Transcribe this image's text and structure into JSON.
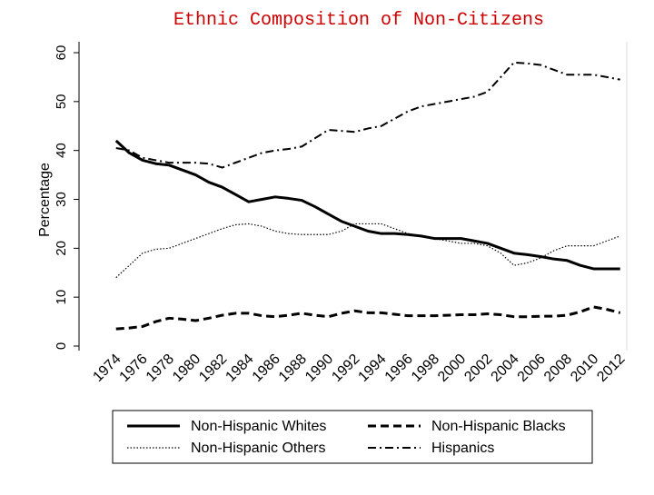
{
  "chart_data": {
    "type": "line",
    "title": "Ethnic Composition of Non-Citizens",
    "y_label": "Percentage",
    "x": [
      1974,
      1975,
      1976,
      1977,
      1978,
      1979,
      1980,
      1981,
      1982,
      1983,
      1984,
      1985,
      1986,
      1987,
      1988,
      1989,
      1990,
      1991,
      1992,
      1993,
      1994,
      1995,
      1996,
      1997,
      1998,
      1999,
      2000,
      2001,
      2002,
      2003,
      2004,
      2005,
      2006,
      2007,
      2008,
      2009,
      2010,
      2011,
      2012
    ],
    "series": [
      {
        "name": "Non-Hispanic Whites",
        "color": "#000000",
        "dash": "solid",
        "values": [
          42,
          39.5,
          38,
          37.3,
          37,
          36,
          35,
          33.5,
          32.5,
          31,
          29.5,
          30,
          30.5,
          30.2,
          29.8,
          28.5,
          27,
          25.5,
          24.5,
          23.5,
          23,
          23,
          22.8,
          22.5,
          22,
          22,
          22,
          21.5,
          21,
          20,
          19,
          18.7,
          18.3,
          17.8,
          17.5,
          16.5,
          15.8,
          15.8,
          15.8
        ]
      },
      {
        "name": "Non-Hispanic Blacks",
        "color": "#000000",
        "dash": "dash",
        "values": [
          3.5,
          3.7,
          4,
          5,
          5.7,
          5.5,
          5.2,
          5.7,
          6.3,
          6.7,
          6.7,
          6.2,
          6,
          6.3,
          6.7,
          6.3,
          6,
          6.7,
          7.2,
          6.8,
          6.8,
          6.5,
          6.2,
          6.2,
          6.2,
          6.3,
          6.4,
          6.4,
          6.6,
          6.4,
          6,
          6,
          6.1,
          6.1,
          6.3,
          7,
          8,
          7.5,
          6.8
        ]
      },
      {
        "name": "Non-Hispanic Others",
        "color": "#000000",
        "dash": "dot",
        "values": [
          14,
          16.5,
          19,
          19.8,
          20,
          21,
          22,
          23,
          24,
          24.8,
          25,
          24.5,
          23.5,
          23,
          22.8,
          22.8,
          22.8,
          23.5,
          25,
          25,
          25,
          24,
          23,
          22.5,
          22,
          21.5,
          21,
          21,
          20.5,
          19,
          16.5,
          17,
          18,
          19.5,
          20.5,
          20.5,
          20.5,
          21.5,
          22.5
        ]
      },
      {
        "name": "Hispanics",
        "color": "#000000",
        "dash": "dashdot",
        "values": [
          40.5,
          40,
          38.5,
          38,
          37.5,
          37.5,
          37.5,
          37.3,
          36.5,
          37.5,
          38.5,
          39.5,
          40,
          40.3,
          40.8,
          42.5,
          44.2,
          44,
          43.8,
          44.5,
          45,
          46.5,
          48,
          49,
          49.5,
          50,
          50.5,
          51,
          52,
          55,
          58,
          57.8,
          57.5,
          56.5,
          55.5,
          55.5,
          55.5,
          55,
          54.5
        ]
      }
    ],
    "xlim": [
      1972.1,
      2012.5
    ],
    "xticks": [
      1974,
      1976,
      1978,
      1980,
      1982,
      1984,
      1986,
      1988,
      1990,
      1992,
      1994,
      1996,
      1998,
      2000,
      2002,
      2004,
      2006,
      2008,
      2010,
      2012
    ],
    "ylim": [
      0,
      60
    ],
    "yticks": [
      0,
      10,
      20,
      30,
      40,
      50,
      60
    ],
    "grid": false,
    "legend": "bottom"
  }
}
